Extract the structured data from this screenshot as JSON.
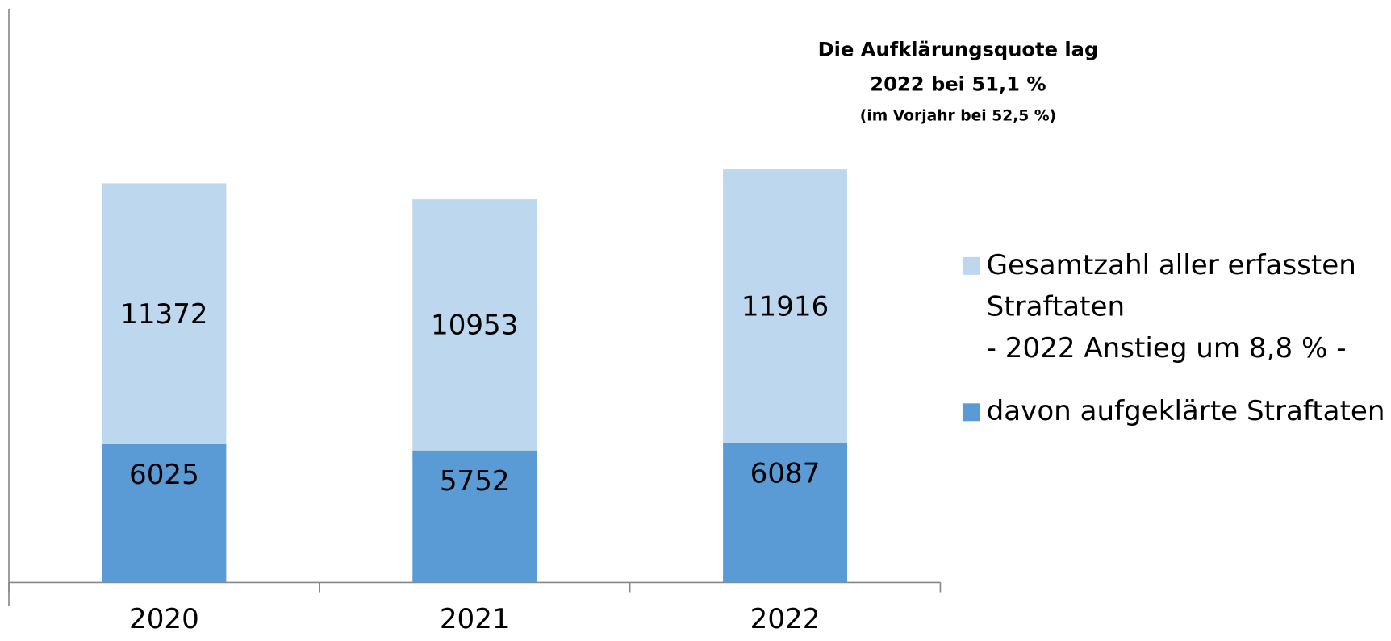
{
  "chart_data": {
    "type": "stacked-bar",
    "categories": [
      "2020",
      "2021",
      "2022"
    ],
    "series": [
      {
        "name": "davon aufgeklärte Straftaten",
        "color": "#5b9bd5",
        "values": [
          6025,
          5752,
          6087
        ]
      },
      {
        "name": "Gesamtzahl aller erfassten\nStraftaten\n- 2022 Anstieg um 8,8 % -",
        "color": "#bdd7ee",
        "values": [
          11372,
          10953,
          11916
        ]
      }
    ],
    "annotations": [
      "Die Aufklärungsquote lag",
      "2022 bei 51,1 %",
      "(im Vorjahr bei 52,5 %)"
    ],
    "ylim": [
      0,
      25000
    ],
    "legend": "right"
  }
}
